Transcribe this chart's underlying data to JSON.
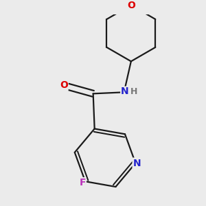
{
  "background_color": "#ebebeb",
  "bond_color": "#1a1a1a",
  "atom_colors": {
    "O": "#dd0000",
    "N": "#2222cc",
    "F": "#bb33bb",
    "H": "#777777",
    "C": "#1a1a1a"
  },
  "figsize": [
    3.0,
    3.0
  ],
  "dpi": 100,
  "lw": 1.6,
  "fontsize": 10
}
